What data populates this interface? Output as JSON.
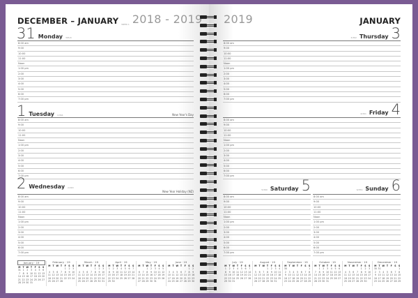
{
  "left": {
    "header": {
      "month": "DECEMBER – JANUARY",
      "week": "WEEK 1",
      "year": "2018 - 2019"
    },
    "days": [
      {
        "num": "31",
        "name": "Monday",
        "count": "365/0",
        "holiday": ""
      },
      {
        "num": "1",
        "name": "Tuesday",
        "count": "1/364",
        "holiday": "New Year's Day"
      },
      {
        "num": "2",
        "name": "Wednesday",
        "count": "2/363",
        "holiday": "New Year Holiday (NZ)"
      }
    ]
  },
  "right": {
    "header": {
      "month": "JANUARY",
      "year": "2019"
    },
    "days": [
      {
        "num": "3",
        "name": "Thursday",
        "count": "3/362"
      },
      {
        "num": "4",
        "name": "Friday",
        "count": "4/361"
      },
      {
        "num": "5",
        "name": "Saturday",
        "count": "5/360"
      },
      {
        "num": "6",
        "name": "Sunday",
        "count": "6/359"
      }
    ]
  },
  "times": [
    "8:00 am",
    "9:00",
    "10:00",
    "11:00",
    "Noon",
    "1:00 pm",
    "2:00",
    "3:00",
    "4:00",
    "5:00",
    "6:00",
    "7:00 pm"
  ],
  "weekday_header": [
    "M",
    "T",
    "W",
    "T",
    "F",
    "S",
    "S"
  ],
  "mini_calendars": [
    {
      "title": "January · 19",
      "highlighted": true,
      "weeks": [
        [
          "31",
          "1",
          "2",
          "3",
          "4",
          "5",
          "6"
        ],
        [
          "7",
          "8",
          "9",
          "10",
          "11",
          "12",
          "13"
        ],
        [
          "14",
          "15",
          "16",
          "17",
          "18",
          "19",
          "20"
        ],
        [
          "21",
          "22",
          "23",
          "24",
          "25",
          "26",
          "27"
        ],
        [
          "28",
          "29",
          "30",
          "31",
          "",
          "",
          ""
        ]
      ]
    },
    {
      "title": "February · 19",
      "weeks": [
        [
          "",
          "",
          "",
          "",
          "1",
          "2",
          "3"
        ],
        [
          "4",
          "5",
          "6",
          "7",
          "8",
          "9",
          "10"
        ],
        [
          "11",
          "12",
          "13",
          "14",
          "15",
          "16",
          "17"
        ],
        [
          "18",
          "19",
          "20",
          "21",
          "22",
          "23",
          "24"
        ],
        [
          "25",
          "26",
          "27",
          "28",
          "",
          "",
          ""
        ]
      ]
    },
    {
      "title": "March · 19",
      "weeks": [
        [
          "",
          "",
          "",
          "",
          "1",
          "2",
          "3"
        ],
        [
          "4",
          "5",
          "6",
          "7",
          "8",
          "9",
          "10"
        ],
        [
          "11",
          "12",
          "13",
          "14",
          "15",
          "16",
          "17"
        ],
        [
          "18",
          "19",
          "20",
          "21",
          "22",
          "23",
          "24"
        ],
        [
          "25",
          "26",
          "27",
          "28",
          "29",
          "30",
          "31"
        ]
      ]
    },
    {
      "title": "April · 19",
      "weeks": [
        [
          "1",
          "2",
          "3",
          "4",
          "5",
          "6",
          "7"
        ],
        [
          "8",
          "9",
          "10",
          "11",
          "12",
          "13",
          "14"
        ],
        [
          "15",
          "16",
          "17",
          "18",
          "19",
          "20",
          "21"
        ],
        [
          "22",
          "23",
          "24",
          "25",
          "26",
          "27",
          "28"
        ],
        [
          "29",
          "30",
          "",
          "",
          "",
          "",
          ""
        ]
      ]
    },
    {
      "title": "May · 19",
      "weeks": [
        [
          "",
          "",
          "1",
          "2",
          "3",
          "4",
          "5"
        ],
        [
          "6",
          "7",
          "8",
          "9",
          "10",
          "11",
          "12"
        ],
        [
          "13",
          "14",
          "15",
          "16",
          "17",
          "18",
          "19"
        ],
        [
          "20",
          "21",
          "22",
          "23",
          "24",
          "25",
          "26"
        ],
        [
          "27",
          "28",
          "29",
          "30",
          "31",
          "",
          ""
        ]
      ]
    },
    {
      "title": "June · 19",
      "weeks": [
        [
          "",
          "",
          "",
          "",
          "",
          "1",
          "2"
        ],
        [
          "3",
          "4",
          "5",
          "6",
          "7",
          "8",
          "9"
        ],
        [
          "10",
          "11",
          "12",
          "13",
          "14",
          "15",
          "16"
        ],
        [
          "17",
          "18",
          "19",
          "20",
          "21",
          "22",
          "23"
        ],
        [
          "24",
          "25",
          "26",
          "27",
          "28",
          "29",
          "30"
        ]
      ]
    },
    {
      "title": "July · 19",
      "weeks": [
        [
          "1",
          "2",
          "3",
          "4",
          "5",
          "6",
          "7"
        ],
        [
          "8",
          "9",
          "10",
          "11",
          "12",
          "13",
          "14"
        ],
        [
          "15",
          "16",
          "17",
          "18",
          "19",
          "20",
          "21"
        ],
        [
          "22",
          "23",
          "24",
          "25",
          "26",
          "27",
          "28"
        ],
        [
          "29",
          "30",
          "31",
          "",
          "",
          "",
          ""
        ]
      ]
    },
    {
      "title": "August · 19",
      "weeks": [
        [
          "",
          "",
          "",
          "1",
          "2",
          "3",
          "4"
        ],
        [
          "5",
          "6",
          "7",
          "8",
          "9",
          "10",
          "11"
        ],
        [
          "12",
          "13",
          "14",
          "15",
          "16",
          "17",
          "18"
        ],
        [
          "19",
          "20",
          "21",
          "22",
          "23",
          "24",
          "25"
        ],
        [
          "26",
          "27",
          "28",
          "29",
          "30",
          "31",
          ""
        ]
      ]
    },
    {
      "title": "September · 19",
      "weeks": [
        [
          "30",
          "",
          "",
          "",
          "",
          "",
          "1"
        ],
        [
          "2",
          "3",
          "4",
          "5",
          "6",
          "7",
          "8"
        ],
        [
          "9",
          "10",
          "11",
          "12",
          "13",
          "14",
          "15"
        ],
        [
          "16",
          "17",
          "18",
          "19",
          "20",
          "21",
          "22"
        ],
        [
          "23",
          "24",
          "25",
          "26",
          "27",
          "28",
          "29"
        ]
      ]
    },
    {
      "title": "October · 19",
      "weeks": [
        [
          "",
          "1",
          "2",
          "3",
          "4",
          "5",
          "6"
        ],
        [
          "7",
          "8",
          "9",
          "10",
          "11",
          "12",
          "13"
        ],
        [
          "14",
          "15",
          "16",
          "17",
          "18",
          "19",
          "20"
        ],
        [
          "21",
          "22",
          "23",
          "24",
          "25",
          "26",
          "27"
        ],
        [
          "28",
          "29",
          "30",
          "31",
          "",
          "",
          ""
        ]
      ]
    },
    {
      "title": "November · 19",
      "weeks": [
        [
          "",
          "",
          "",
          "",
          "1",
          "2",
          "3"
        ],
        [
          "4",
          "5",
          "6",
          "7",
          "8",
          "9",
          "10"
        ],
        [
          "11",
          "12",
          "13",
          "14",
          "15",
          "16",
          "17"
        ],
        [
          "18",
          "19",
          "20",
          "21",
          "22",
          "23",
          "24"
        ],
        [
          "25",
          "26",
          "27",
          "28",
          "29",
          "30",
          ""
        ]
      ]
    },
    {
      "title": "December · 19",
      "weeks": [
        [
          "30",
          "31",
          "",
          "",
          "",
          "",
          "1"
        ],
        [
          "2",
          "3",
          "4",
          "5",
          "6",
          "7",
          "8"
        ],
        [
          "9",
          "10",
          "11",
          "12",
          "13",
          "14",
          "15"
        ],
        [
          "16",
          "17",
          "18",
          "19",
          "20",
          "21",
          "22"
        ],
        [
          "23",
          "24",
          "25",
          "26",
          "27",
          "28",
          "29"
        ]
      ]
    }
  ],
  "colors": {
    "cover": "#7a5b93",
    "paper": "#ffffff",
    "spiral": "#222222"
  }
}
